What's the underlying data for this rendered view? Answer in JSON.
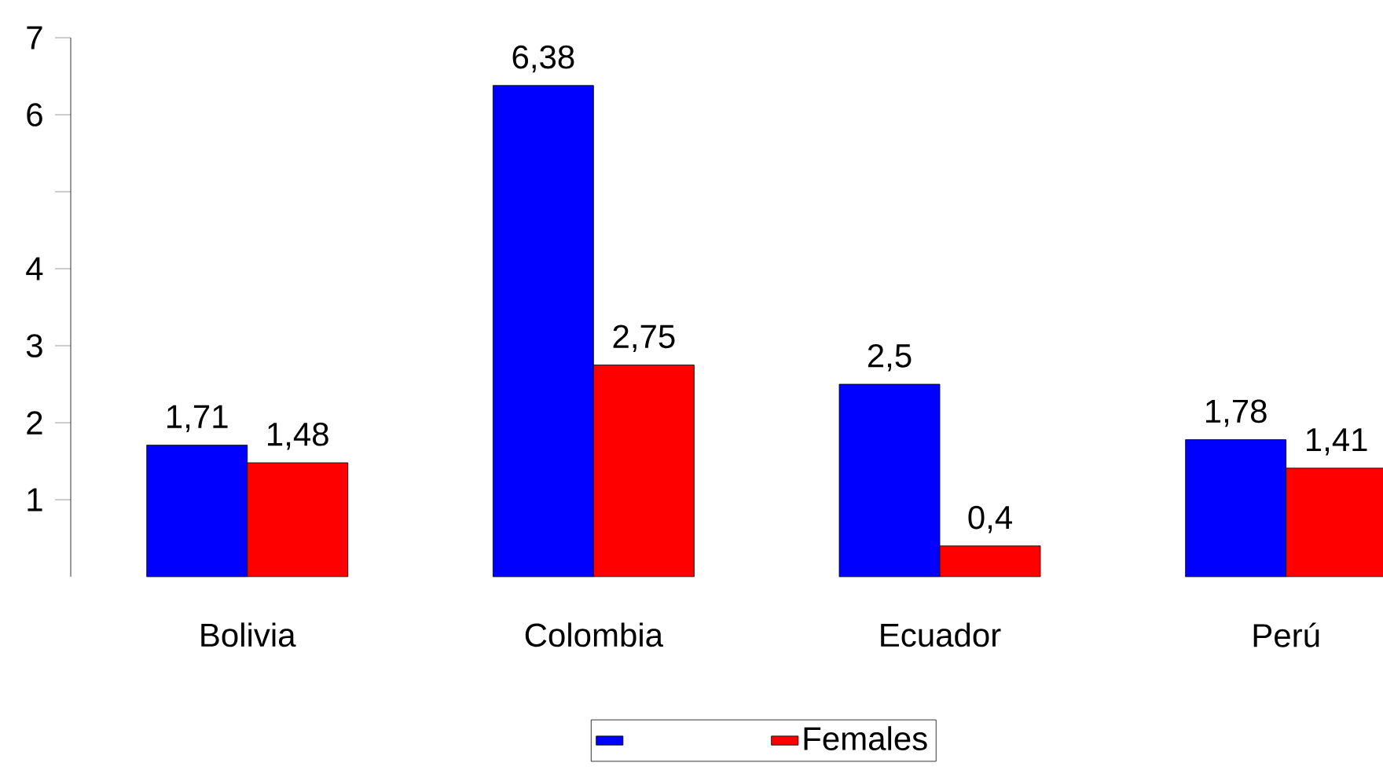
{
  "chart_data": {
    "type": "bar",
    "categories": [
      "Bolivia",
      "Colombia",
      "Ecuador",
      "Perú"
    ],
    "series": [
      {
        "color": "#0000ff",
        "values": [
          1.71,
          6.38,
          2.5,
          1.78
        ],
        "value_labels": [
          "1,71",
          "6,38",
          "2,5",
          "1,78"
        ]
      },
      {
        "name": "Females",
        "color": "#ff0000",
        "values": [
          1.48,
          2.75,
          0.4,
          1.41
        ],
        "value_labels": [
          "1,48",
          "2,75",
          "0,4",
          "1,41"
        ]
      }
    ],
    "ylim": [
      0,
      7
    ],
    "yticks": [
      1,
      2,
      3,
      4,
      {
        "value": 5,
        "label": null
      },
      6,
      7
    ],
    "grid": false,
    "legend": "bottom"
  }
}
